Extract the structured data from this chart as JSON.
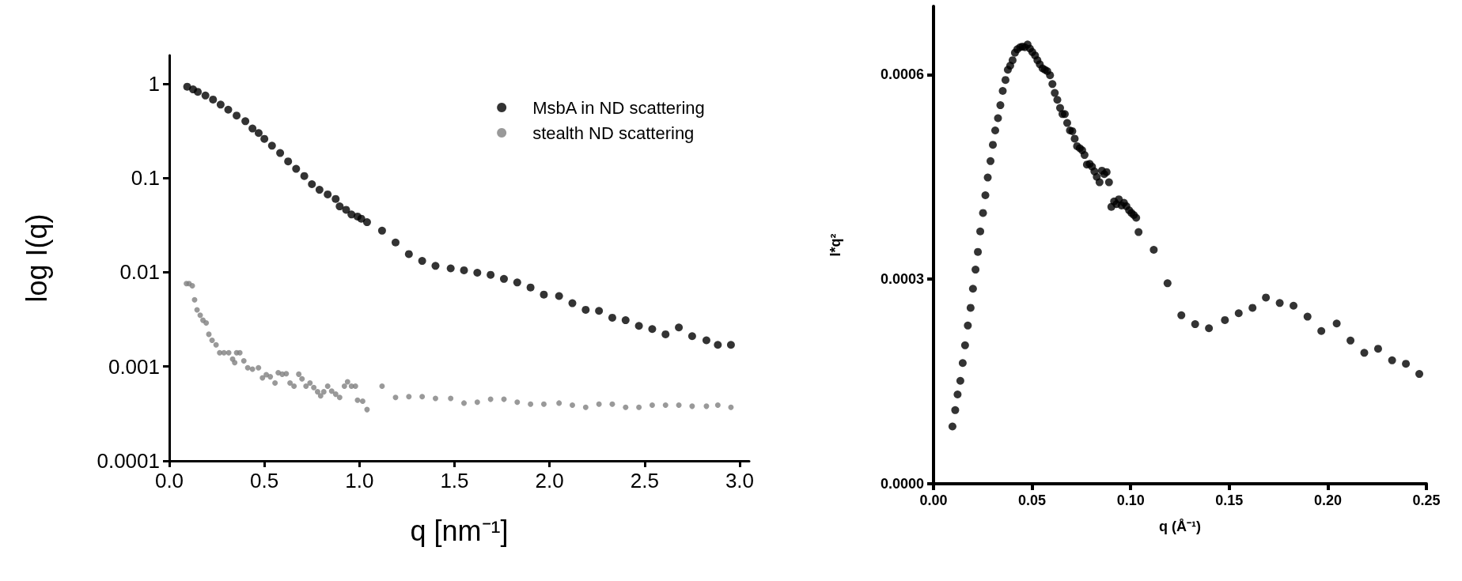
{
  "chart_data": [
    {
      "type": "scatter",
      "xlabel": "q [nm⁻¹]",
      "ylabel": "log I(q)",
      "log": "y",
      "grid": false,
      "legend": "top right",
      "marker": "circle",
      "xlim": [
        0,
        3.05
      ],
      "xticks": [
        {
          "value": 0,
          "label": "0.0"
        },
        {
          "value": 0.5,
          "label": "0.5"
        },
        {
          "value": 1,
          "label": "1.0"
        },
        {
          "value": 1.5,
          "label": "1.5"
        },
        {
          "value": 2,
          "label": "2.0"
        },
        {
          "value": 2.5,
          "label": "2.5"
        },
        {
          "value": 3,
          "label": "3.0"
        }
      ],
      "ylim": [
        0.0001,
        2
      ],
      "yticks": [
        0.0001,
        0.001,
        0.01,
        0.1,
        1
      ],
      "series": [
        {
          "name": "MsbA in ND scattering",
          "color": "#000000",
          "x": [
            0.094,
            0.125,
            0.15,
            0.19,
            0.23,
            0.27,
            0.31,
            0.354,
            0.4,
            0.4375,
            0.47,
            0.5,
            0.54,
            0.583,
            0.625,
            0.667,
            0.71,
            0.75,
            0.79,
            0.833,
            0.875,
            0.896,
            0.93,
            0.958,
            0.99,
            1.01,
            1.04,
            1.119,
            1.19,
            1.26,
            1.33,
            1.4,
            1.48,
            1.55,
            1.62,
            1.69,
            1.76,
            1.83,
            1.9,
            1.97,
            2.05,
            2.12,
            2.19,
            2.26,
            2.33,
            2.4,
            2.47,
            2.54,
            2.61,
            2.68,
            2.75,
            2.825,
            2.885,
            2.954
          ],
          "values": [
            0.93,
            0.87,
            0.82,
            0.75,
            0.68,
            0.6,
            0.53,
            0.46,
            0.4,
            0.335,
            0.3,
            0.26,
            0.22,
            0.184,
            0.15,
            0.125,
            0.105,
            0.086,
            0.075,
            0.067,
            0.06,
            0.05,
            0.046,
            0.041,
            0.039,
            0.037,
            0.034,
            0.0276,
            0.0207,
            0.0156,
            0.0132,
            0.0117,
            0.011,
            0.0105,
            0.0099,
            0.0094,
            0.0085,
            0.0078,
            0.0069,
            0.0058,
            0.0056,
            0.0047,
            0.004,
            0.0039,
            0.0033,
            0.0031,
            0.0027,
            0.0025,
            0.0022,
            0.0026,
            0.0021,
            0.0019,
            0.0017,
            0.0017
          ]
        },
        {
          "name": "stealth ND scattering",
          "color": "#808080",
          "x": [
            0.09,
            0.104,
            0.121,
            0.133,
            0.146,
            0.1625,
            0.177,
            0.194,
            0.208,
            0.225,
            0.246,
            0.265,
            0.2875,
            0.3125,
            0.333,
            0.344,
            0.354,
            0.371,
            0.392,
            0.4125,
            0.4375,
            0.469,
            0.49,
            0.51,
            0.531,
            0.556,
            0.573,
            0.594,
            0.615,
            0.635,
            0.656,
            0.681,
            0.698,
            0.719,
            0.74,
            0.76,
            0.78,
            0.796,
            0.8125,
            0.833,
            0.854,
            0.875,
            0.896,
            0.921,
            0.9375,
            0.958,
            0.979,
            0.99,
            1.017,
            1.04,
            1.119,
            1.19,
            1.26,
            1.33,
            1.4,
            1.48,
            1.55,
            1.62,
            1.69,
            1.76,
            1.83,
            1.9,
            1.97,
            2.05,
            2.12,
            2.19,
            2.26,
            2.33,
            2.4,
            2.47,
            2.54,
            2.61,
            2.68,
            2.75,
            2.825,
            2.885,
            2.954
          ],
          "values": [
            0.0076,
            0.0076,
            0.0072,
            0.0051,
            0.004,
            0.0035,
            0.0031,
            0.0029,
            0.0022,
            0.0019,
            0.0017,
            0.0014,
            0.0014,
            0.0014,
            0.0012,
            0.0011,
            0.0014,
            0.0014,
            0.00115,
            0.00097,
            0.00094,
            0.00097,
            0.00076,
            0.00082,
            0.00078,
            0.00067,
            0.00086,
            0.00083,
            0.00084,
            0.00067,
            0.00062,
            0.00083,
            0.00074,
            0.00062,
            0.00067,
            0.0006,
            0.00054,
            0.00049,
            0.00054,
            0.00062,
            0.00055,
            0.00051,
            0.00047,
            0.00062,
            0.00069,
            0.00062,
            0.00062,
            0.00044,
            0.00043,
            0.00035,
            0.00062,
            0.00047,
            0.00048,
            0.00048,
            0.00046,
            0.00046,
            0.00041,
            0.00042,
            0.00045,
            0.00045,
            0.00042,
            0.0004,
            0.0004,
            0.00041,
            0.00039,
            0.00037,
            0.0004,
            0.0004,
            0.00037,
            0.00037,
            0.00039,
            0.00039,
            0.00039,
            0.00038,
            0.00038,
            0.00039,
            0.00037
          ]
        }
      ]
    },
    {
      "type": "scatter",
      "xlabel": "q (Å⁻¹)",
      "ylabel": "I*q²",
      "grid": false,
      "marker": "circle",
      "xlim": [
        0,
        0.25
      ],
      "xticks": [
        {
          "value": 0,
          "label": "0.00"
        },
        {
          "value": 0.05,
          "label": "0.05"
        },
        {
          "value": 0.1,
          "label": "0.10"
        },
        {
          "value": 0.15,
          "label": "0.15"
        },
        {
          "value": 0.2,
          "label": "0.20"
        },
        {
          "value": 0.25,
          "label": "0.25"
        }
      ],
      "ylim": [
        0,
        0.0007
      ],
      "yticks": [
        {
          "value": 0,
          "label": "0.0000"
        },
        {
          "value": 0.0003,
          "label": "0.0003"
        },
        {
          "value": 0.0006,
          "label": "0.0006"
        }
      ],
      "series": [
        {
          "color": "#000000",
          "x": [
            0.0096,
            0.011,
            0.0122,
            0.0136,
            0.0148,
            0.016,
            0.0174,
            0.0188,
            0.02,
            0.0213,
            0.0225,
            0.0237,
            0.0251,
            0.0263,
            0.0275,
            0.0289,
            0.0301,
            0.0313,
            0.0327,
            0.0339,
            0.0351,
            0.0365,
            0.0377,
            0.0389,
            0.0401,
            0.0413,
            0.0425,
            0.0439,
            0.0451,
            0.0463,
            0.0477,
            0.0489,
            0.0501,
            0.0515,
            0.0527,
            0.0539,
            0.0553,
            0.0565,
            0.0577,
            0.0591,
            0.0603,
            0.0615,
            0.0628,
            0.0642,
            0.0654,
            0.0666,
            0.0678,
            0.0692,
            0.0704,
            0.0716,
            0.0728,
            0.0742,
            0.0754,
            0.0766,
            0.0778,
            0.0792,
            0.0804,
            0.0816,
            0.0828,
            0.0842,
            0.0854,
            0.0866,
            0.0878,
            0.089,
            0.0902,
            0.0916,
            0.0928,
            0.094,
            0.0954,
            0.0966,
            0.0978,
            0.0992,
            0.1004,
            0.1016,
            0.1028,
            0.104,
            0.1117,
            0.1187,
            0.1257,
            0.1327,
            0.1397,
            0.1478,
            0.1548,
            0.1618,
            0.1686,
            0.1756,
            0.1826,
            0.1897,
            0.1967,
            0.2045,
            0.2115,
            0.2185,
            0.2255,
            0.2326,
            0.2396,
            0.2464
          ],
          "values": [
            8.4e-05,
            0.000108,
            0.000131,
            0.000151,
            0.000177,
            0.000203,
            0.000232,
            0.000258,
            0.000286,
            0.000314,
            0.00034,
            0.00037,
            0.000397,
            0.000423,
            0.000449,
            0.000473,
            0.000497,
            0.000518,
            0.000536,
            0.000555,
            0.000576,
            0.000592,
            0.000607,
            0.000613,
            0.000621,
            0.000632,
            0.000637,
            0.00064,
            0.000641,
            0.00064,
            0.000644,
            0.000638,
            0.000633,
            0.000628,
            0.000621,
            0.000615,
            0.000609,
            0.000607,
            0.000605,
            0.000599,
            0.000586,
            0.000573,
            0.000563,
            0.000551,
            0.000542,
            0.000542,
            0.000529,
            0.000518,
            0.000517,
            0.000506,
            0.000495,
            0.000492,
            0.000489,
            0.000482,
            0.000468,
            0.000469,
            0.000465,
            0.000458,
            0.00045,
            0.000442,
            0.000459,
            0.000454,
            0.000457,
            0.000442,
            0.000406,
            0.000414,
            0.00041,
            0.000417,
            0.000408,
            0.000412,
            0.000407,
            0.000401,
            0.000397,
            0.000394,
            0.00039,
            0.000369,
            0.000343,
            0.000294,
            0.000247,
            0.000234,
            0.000228,
            0.00024,
            0.00025,
            0.000258,
            0.000273,
            0.000265,
            0.000261,
            0.000245,
            0.000224,
            0.000235,
            0.00021,
            0.000192,
            0.000198,
            0.000181,
            0.000176,
            0.000161
          ]
        }
      ]
    }
  ]
}
